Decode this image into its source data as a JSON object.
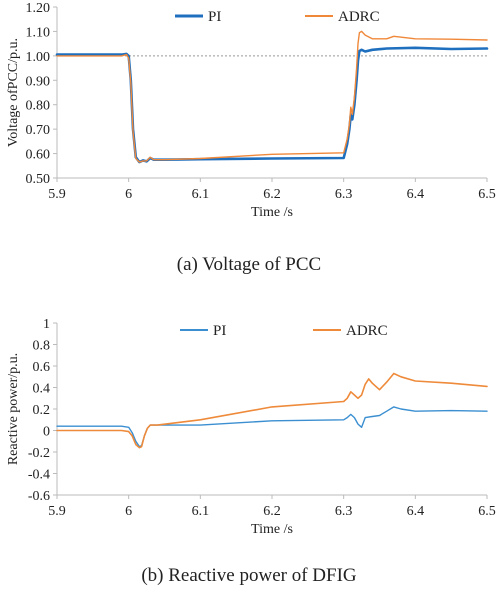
{
  "chart_data": [
    {
      "type": "line",
      "caption": "(a) Voltage of PCC",
      "xlabel": "Time /s",
      "ylabel": "Voltage ofPCC/p.u.",
      "xlim": [
        5.9,
        6.5
      ],
      "ylim": [
        0.5,
        1.2
      ],
      "xticks": [
        "5.9",
        "6",
        "6.1",
        "6.2",
        "6.3",
        "6.4",
        "6.5"
      ],
      "yticks": [
        "0.50",
        "0.60",
        "0.70",
        "0.80",
        "0.90",
        "1.00",
        "1.10",
        "1.20"
      ],
      "reference_line": {
        "y": 1.0,
        "style": "dotted"
      },
      "legend": "top",
      "series": [
        {
          "name": "PI",
          "color": "#1f6fbf",
          "x": [
            5.9,
            5.99,
            5.997,
            6.0,
            6.003,
            6.006,
            6.01,
            6.015,
            6.02,
            6.025,
            6.03,
            6.035,
            6.05,
            6.1,
            6.2,
            6.3,
            6.305,
            6.308,
            6.31,
            6.312,
            6.315,
            6.318,
            6.32,
            6.322,
            6.325,
            6.33,
            6.34,
            6.36,
            6.4,
            6.45,
            6.5
          ],
          "y": [
            1.005,
            1.005,
            1.008,
            1.0,
            0.9,
            0.7,
            0.585,
            0.565,
            0.572,
            0.568,
            0.582,
            0.575,
            0.575,
            0.577,
            0.58,
            0.582,
            0.64,
            0.7,
            0.76,
            0.74,
            0.8,
            0.9,
            0.98,
            1.02,
            1.025,
            1.018,
            1.025,
            1.03,
            1.033,
            1.028,
            1.03
          ]
        },
        {
          "name": "ADRC",
          "color": "#f0883a",
          "x": [
            5.9,
            5.99,
            5.997,
            6.0,
            6.003,
            6.006,
            6.01,
            6.015,
            6.02,
            6.025,
            6.03,
            6.035,
            6.05,
            6.1,
            6.2,
            6.3,
            6.305,
            6.308,
            6.31,
            6.312,
            6.315,
            6.318,
            6.32,
            6.322,
            6.325,
            6.33,
            6.34,
            6.36,
            6.37,
            6.4,
            6.45,
            6.5
          ],
          "y": [
            1.0,
            1.0,
            1.005,
            0.99,
            0.89,
            0.69,
            0.58,
            0.565,
            0.57,
            0.57,
            0.585,
            0.575,
            0.575,
            0.58,
            0.597,
            0.603,
            0.66,
            0.72,
            0.79,
            0.76,
            0.83,
            0.95,
            1.05,
            1.095,
            1.1,
            1.085,
            1.07,
            1.07,
            1.08,
            1.07,
            1.068,
            1.065
          ]
        }
      ]
    },
    {
      "type": "line",
      "caption": "(b) Reactive power of DFIG",
      "xlabel": "Time /s",
      "ylabel": "Reactive power/p.u.",
      "xlim": [
        5.9,
        6.5
      ],
      "ylim": [
        -0.6,
        1.0
      ],
      "xticks": [
        "5.9",
        "6",
        "6.1",
        "6.2",
        "6.3",
        "6.4",
        "6.5"
      ],
      "yticks": [
        "-0.6",
        "-0.4",
        "-0.2",
        "0",
        "0.2",
        "0.4",
        "0.6",
        "0.8",
        "1"
      ],
      "legend": "top",
      "series": [
        {
          "name": "PI",
          "color": "#3b8fd1",
          "x": [
            5.9,
            5.99,
            6.0,
            6.005,
            6.01,
            6.015,
            6.018,
            6.022,
            6.026,
            6.03,
            6.04,
            6.1,
            6.2,
            6.3,
            6.305,
            6.31,
            6.315,
            6.32,
            6.325,
            6.33,
            6.34,
            6.35,
            6.36,
            6.37,
            6.38,
            6.4,
            6.45,
            6.5
          ],
          "y": [
            0.04,
            0.04,
            0.03,
            -0.02,
            -0.1,
            -0.15,
            -0.14,
            -0.05,
            0.02,
            0.05,
            0.05,
            0.05,
            0.09,
            0.1,
            0.12,
            0.15,
            0.12,
            0.06,
            0.03,
            0.12,
            0.13,
            0.14,
            0.18,
            0.22,
            0.2,
            0.18,
            0.185,
            0.18
          ]
        },
        {
          "name": "ADRC",
          "color": "#ee8a3a",
          "x": [
            5.9,
            5.99,
            6.0,
            6.005,
            6.01,
            6.015,
            6.018,
            6.022,
            6.026,
            6.03,
            6.04,
            6.1,
            6.2,
            6.3,
            6.305,
            6.31,
            6.315,
            6.32,
            6.325,
            6.33,
            6.335,
            6.34,
            6.35,
            6.36,
            6.37,
            6.38,
            6.4,
            6.45,
            6.5
          ],
          "y": [
            0.0,
            0.0,
            -0.01,
            -0.05,
            -0.13,
            -0.16,
            -0.15,
            -0.05,
            0.02,
            0.05,
            0.05,
            0.1,
            0.22,
            0.27,
            0.3,
            0.36,
            0.33,
            0.3,
            0.33,
            0.43,
            0.48,
            0.44,
            0.38,
            0.45,
            0.53,
            0.5,
            0.46,
            0.44,
            0.41
          ]
        }
      ]
    }
  ]
}
